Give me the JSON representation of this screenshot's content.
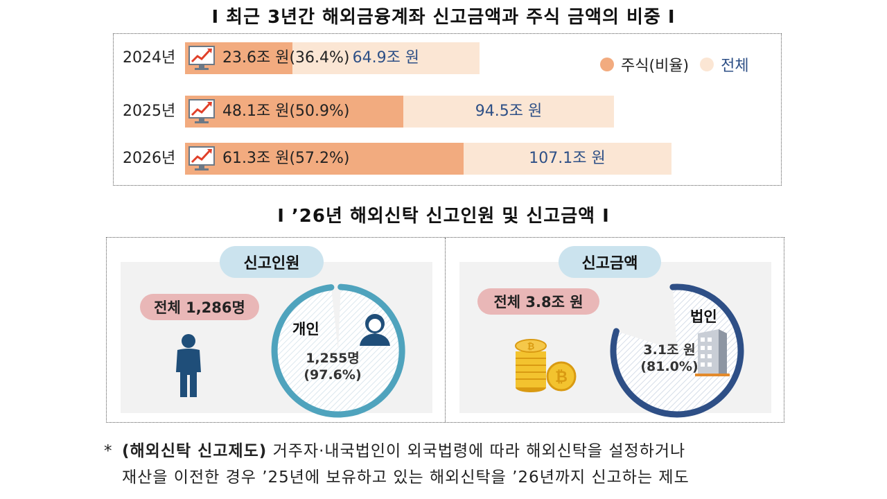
{
  "titles": {
    "chart1": "Ι 최근 3년간 해외금융계좌 신고금액과 주식 금액의 비중 Ι",
    "chart2": "Ι ’26년 해외신탁 신고인원 및 신고금액 Ι"
  },
  "colors": {
    "share": "#f2ab7f",
    "total": "#fbe6d4",
    "total_text": "#2d4f86",
    "pill": "#cbe3ee",
    "badge": "#e9b7b7",
    "donut_left": "#4fa3bd",
    "donut_right": "#2e4f86"
  },
  "chart_data": [
    {
      "type": "bar",
      "orientation": "horizontal",
      "categories": [
        "2024년",
        "2025년",
        "2026년"
      ],
      "series": [
        {
          "name": "주식(비율)",
          "values": [
            23.6,
            48.1,
            61.3
          ],
          "ratios": [
            "36.4%",
            "50.9%",
            "57.2%"
          ]
        },
        {
          "name": "전체",
          "values": [
            64.9,
            94.5,
            107.1
          ]
        }
      ],
      "share_labels": [
        "23.6조 원(36.4%)",
        "48.1조 원(50.9%)",
        "61.3조 원(57.2%)"
      ],
      "total_labels": [
        "64.9조 원",
        "94.5조 원",
        "107.1조 원"
      ],
      "legend": {
        "position": "top-right",
        "share": "주식(비율)",
        "total": "전체"
      },
      "icon": "chart-trend-icon"
    },
    {
      "type": "pie",
      "title": "신고인원",
      "total_label": "전체 1,286명",
      "total": 1286,
      "slices": [
        {
          "label": "개인",
          "value": 1255,
          "percent": 97.6
        }
      ],
      "value_lines": [
        "1,255명",
        "(97.6%)"
      ],
      "icons": [
        "person-icon",
        "individual-avatar-icon"
      ]
    },
    {
      "type": "pie",
      "title": "신고금액",
      "total_label": "전체 3.8조 원",
      "total": 3.8,
      "slices": [
        {
          "label": "법인",
          "value": 3.1,
          "percent": 81.0
        }
      ],
      "value_lines": [
        "3.1조 원",
        "(81.0%)"
      ],
      "icons": [
        "bitcoin-coins-icon",
        "building-icon"
      ]
    }
  ],
  "footnote": {
    "star": "*",
    "heading": "(해외신탁 신고제도)",
    "line1_rest": " 거주자·내국법인이 외국법령에 따라 해외신탁을 설정하거나",
    "line2": "재산을 이전한 경우 ’25년에 보유하고 있는 해외신탁을 ’26년까지 신고하는 제도"
  }
}
